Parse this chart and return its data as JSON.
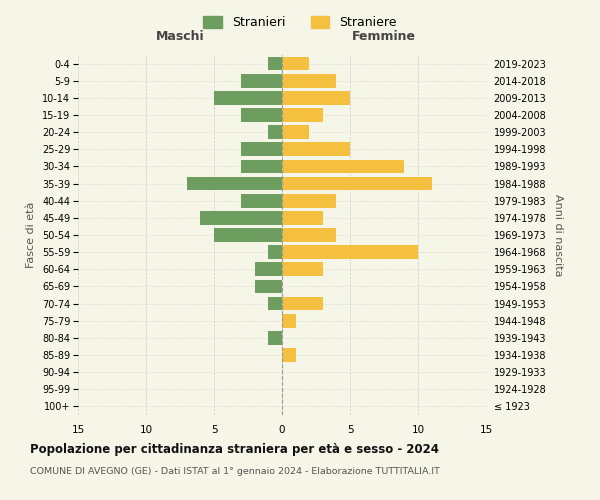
{
  "age_groups": [
    "100+",
    "95-99",
    "90-94",
    "85-89",
    "80-84",
    "75-79",
    "70-74",
    "65-69",
    "60-64",
    "55-59",
    "50-54",
    "45-49",
    "40-44",
    "35-39",
    "30-34",
    "25-29",
    "20-24",
    "15-19",
    "10-14",
    "5-9",
    "0-4"
  ],
  "birth_years": [
    "≤ 1923",
    "1924-1928",
    "1929-1933",
    "1934-1938",
    "1939-1943",
    "1944-1948",
    "1949-1953",
    "1954-1958",
    "1959-1963",
    "1964-1968",
    "1969-1973",
    "1974-1978",
    "1979-1983",
    "1984-1988",
    "1989-1993",
    "1994-1998",
    "1999-2003",
    "2004-2008",
    "2009-2013",
    "2014-2018",
    "2019-2023"
  ],
  "maschi": [
    0,
    0,
    0,
    0,
    1,
    0,
    1,
    2,
    2,
    1,
    5,
    6,
    3,
    7,
    3,
    3,
    1,
    3,
    5,
    3,
    1
  ],
  "femmine": [
    0,
    0,
    0,
    1,
    0,
    1,
    3,
    0,
    3,
    10,
    4,
    3,
    4,
    11,
    9,
    5,
    2,
    3,
    5,
    4,
    2
  ],
  "maschi_color": "#6e9e5f",
  "femmine_color": "#f5c040",
  "bg_color": "#f5f5e8",
  "grid_color": "#cccccc",
  "title": "Popolazione per cittadinanza straniera per età e sesso - 2024",
  "subtitle": "COMUNE DI AVEGNO (GE) - Dati ISTAT al 1° gennaio 2024 - Elaborazione TUTTITALIA.IT",
  "xlabel_left": "Maschi",
  "xlabel_right": "Femmine",
  "ylabel_left": "Fasce di età",
  "ylabel_right": "Anni di nascita",
  "legend_maschi": "Stranieri",
  "legend_femmine": "Straniere",
  "xlim": 15,
  "bar_height": 0.8
}
